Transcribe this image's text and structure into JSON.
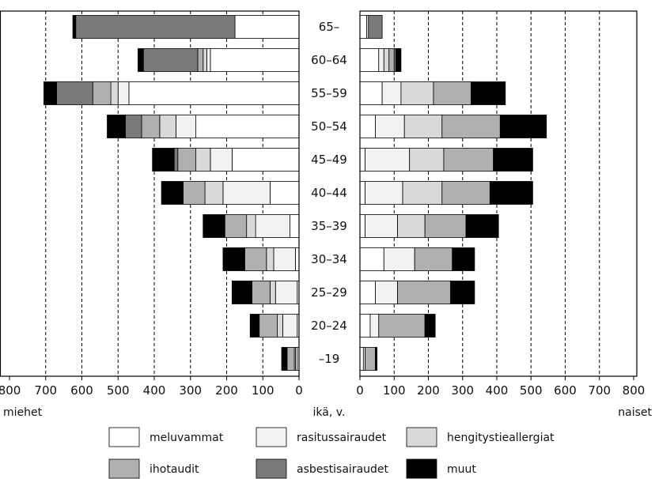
{
  "chart_data": {
    "type": "bar",
    "orientation": "horizontal",
    "layout": "population-pyramid",
    "categories": [
      "65–",
      "60–64",
      "55–59",
      "50–54",
      "45–49",
      "40–44",
      "35–39",
      "30–34",
      "25–29",
      "20–24",
      "–19"
    ],
    "category_label": "ikä, v.",
    "series_colors": {
      "meluvammat": "#ffffff",
      "rasitussairaudet": "#f2f2f2",
      "hengitystieallergiat": "#d9d9d9",
      "ihotaudit": "#b0b0b0",
      "asbestisairaudet": "#7a7a7a",
      "muut": "#000000"
    },
    "legend": [
      "meluvammat",
      "rasitussairaudet",
      "hengitystieallergiat",
      "ihotaudit",
      "asbestisairaudet",
      "muut"
    ],
    "legend_placement": "bottom",
    "left": {
      "label": "miehet",
      "xlim": [
        800,
        0
      ],
      "ticks": [
        "800",
        "700",
        "600",
        "500",
        "400",
        "300",
        "200",
        "100",
        "0"
      ],
      "grid": true,
      "series": [
        {
          "name": "meluvammat",
          "values": [
            177,
            245,
            470,
            285,
            185,
            80,
            25,
            10,
            5,
            5,
            5
          ]
        },
        {
          "name": "rasitussairaudet",
          "values": [
            0,
            10,
            30,
            55,
            60,
            130,
            95,
            60,
            60,
            40,
            5
          ]
        },
        {
          "name": "hengitystieallergiat",
          "values": [
            0,
            10,
            20,
            45,
            40,
            50,
            25,
            20,
            15,
            15,
            3
          ]
        },
        {
          "name": "ihotaudit",
          "values": [
            0,
            15,
            50,
            50,
            50,
            60,
            60,
            60,
            50,
            50,
            20
          ]
        },
        {
          "name": "asbestisairaudet",
          "values": [
            440,
            150,
            100,
            45,
            10,
            0,
            0,
            0,
            0,
            0,
            0
          ]
        },
        {
          "name": "muut",
          "values": [
            8,
            15,
            35,
            50,
            60,
            60,
            60,
            60,
            55,
            25,
            15
          ]
        }
      ]
    },
    "right": {
      "label": "naiset",
      "xlim": [
        0,
        800
      ],
      "ticks": [
        "0",
        "100",
        "200",
        "300",
        "400",
        "500",
        "600",
        "700",
        "800"
      ],
      "grid": true,
      "series": [
        {
          "name": "meluvammat",
          "values": [
            20,
            55,
            65,
            45,
            15,
            15,
            15,
            70,
            45,
            30,
            10
          ]
        },
        {
          "name": "rasitussairaudet",
          "values": [
            5,
            15,
            55,
            85,
            130,
            110,
            95,
            90,
            65,
            25,
            5
          ]
        },
        {
          "name": "hengitystieallergiat",
          "values": [
            0,
            15,
            95,
            110,
            100,
            115,
            80,
            0,
            0,
            0,
            0
          ]
        },
        {
          "name": "ihotaudit",
          "values": [
            0,
            15,
            110,
            170,
            145,
            140,
            120,
            110,
            155,
            135,
            30
          ]
        },
        {
          "name": "asbestisairaudet",
          "values": [
            40,
            5,
            0,
            0,
            0,
            0,
            0,
            0,
            0,
            0,
            0
          ]
        },
        {
          "name": "muut",
          "values": [
            0,
            15,
            100,
            135,
            115,
            125,
            95,
            65,
            70,
            30,
            5
          ]
        }
      ]
    }
  }
}
